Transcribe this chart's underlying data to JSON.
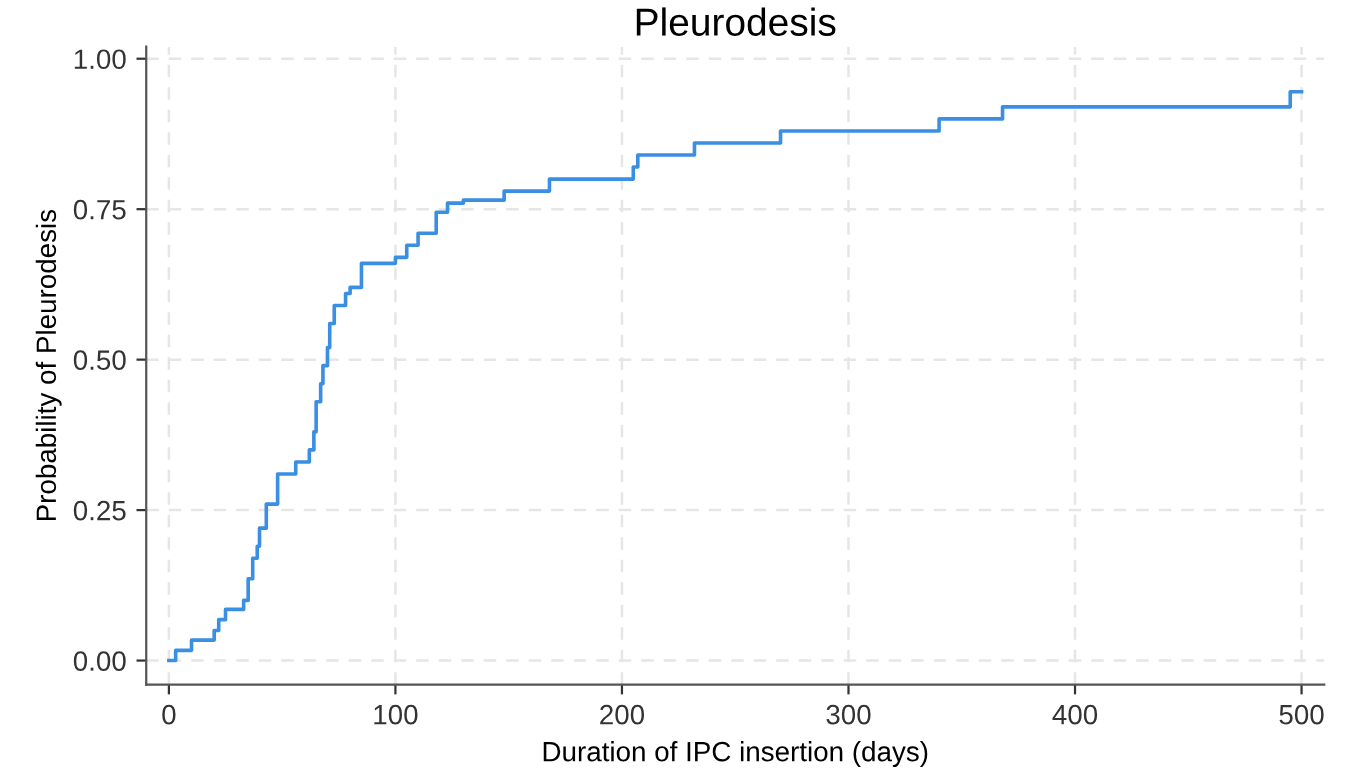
{
  "chart_data": {
    "type": "step",
    "title": "Pleurodesis",
    "xlabel": "Duration of IPC insertion (days)",
    "ylabel": "Probability of Pleurodesis",
    "series": [
      {
        "color": "#3b8fe3",
        "x": [
          0,
          3,
          10,
          20,
          22,
          25,
          33,
          35,
          37,
          39,
          40,
          43,
          48,
          56,
          62,
          64,
          65,
          67,
          68,
          70,
          71,
          73,
          78,
          80,
          85,
          100,
          105,
          110,
          118,
          123,
          130,
          148,
          168,
          205,
          207,
          232,
          270,
          340,
          368,
          495,
          500
        ],
        "values": [
          0,
          0.017,
          0.034,
          0.05,
          0.068,
          0.085,
          0.1,
          0.136,
          0.17,
          0.19,
          0.22,
          0.26,
          0.31,
          0.33,
          0.35,
          0.38,
          0.43,
          0.46,
          0.49,
          0.52,
          0.56,
          0.59,
          0.61,
          0.62,
          0.66,
          0.67,
          0.69,
          0.71,
          0.745,
          0.76,
          0.765,
          0.78,
          0.8,
          0.82,
          0.84,
          0.86,
          0.88,
          0.9,
          0.92,
          0.945,
          0.945
        ]
      }
    ],
    "xlim": [
      -10,
      510
    ],
    "ylim": [
      -0.04,
      1.02
    ],
    "xticks": [
      0,
      100,
      200,
      300,
      400,
      500
    ],
    "yticks": [
      {
        "value": 0,
        "label": "0.00"
      },
      {
        "value": 0.25,
        "label": "0.25"
      },
      {
        "value": 0.5,
        "label": "0.50"
      },
      {
        "value": 0.75,
        "label": "0.75"
      },
      {
        "value": 1,
        "label": "1.00"
      }
    ],
    "grid": true
  }
}
